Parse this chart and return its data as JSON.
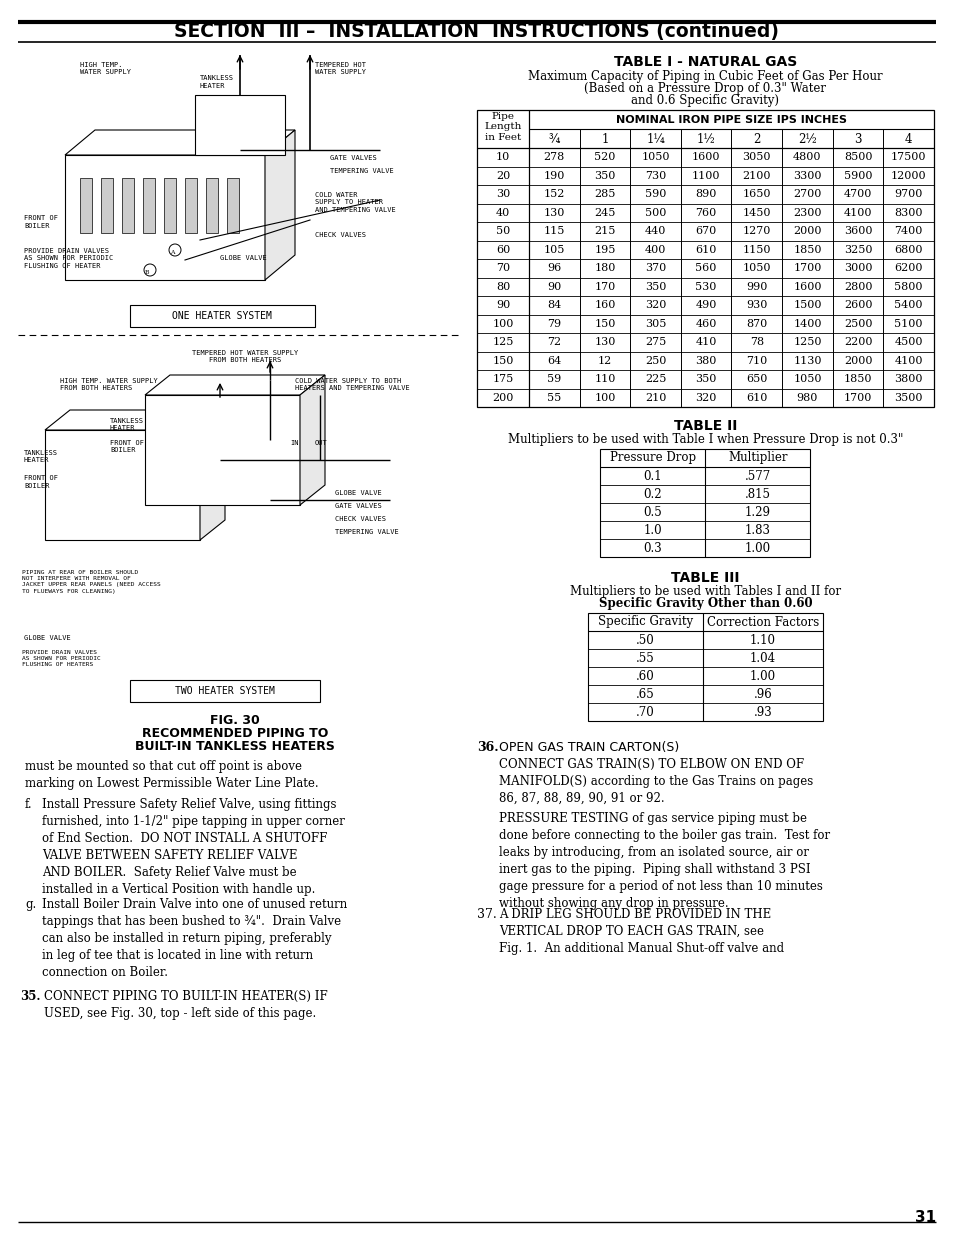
{
  "title": "SECTION  III –  INSTALLATION  INSTRUCTIONS (continued)",
  "page_number": "31",
  "table1_title": "TABLE I - NATURAL GAS",
  "table1_subtitle1": "Maximum Capacity of Piping in Cubic Feet of Gas Per Hour",
  "table1_subtitle2": "(Based on a Pressure Drop of 0.3\" Water",
  "table1_subtitle3": "and 0.6 Specific Gravity)",
  "table1_pipe_sizes": [
    "¾",
    "1",
    "1¼",
    "1½",
    "2",
    "2½",
    "3",
    "4"
  ],
  "table1_data": [
    [
      "10",
      "278",
      "520",
      "1050",
      "1600",
      "3050",
      "4800",
      "8500",
      "17500"
    ],
    [
      "20",
      "190",
      "350",
      "730",
      "1100",
      "2100",
      "3300",
      "5900",
      "12000"
    ],
    [
      "30",
      "152",
      "285",
      "590",
      "890",
      "1650",
      "2700",
      "4700",
      "9700"
    ],
    [
      "40",
      "130",
      "245",
      "500",
      "760",
      "1450",
      "2300",
      "4100",
      "8300"
    ],
    [
      "50",
      "115",
      "215",
      "440",
      "670",
      "1270",
      "2000",
      "3600",
      "7400"
    ],
    [
      "60",
      "105",
      "195",
      "400",
      "610",
      "1150",
      "1850",
      "3250",
      "6800"
    ],
    [
      "70",
      "96",
      "180",
      "370",
      "560",
      "1050",
      "1700",
      "3000",
      "6200"
    ],
    [
      "80",
      "90",
      "170",
      "350",
      "530",
      "990",
      "1600",
      "2800",
      "5800"
    ],
    [
      "90",
      "84",
      "160",
      "320",
      "490",
      "930",
      "1500",
      "2600",
      "5400"
    ],
    [
      "100",
      "79",
      "150",
      "305",
      "460",
      "870",
      "1400",
      "2500",
      "5100"
    ],
    [
      "125",
      "72",
      "130",
      "275",
      "410",
      "78",
      "1250",
      "2200",
      "4500"
    ],
    [
      "150",
      "64",
      "12",
      "250",
      "380",
      "710",
      "1130",
      "2000",
      "4100"
    ],
    [
      "175",
      "59",
      "110",
      "225",
      "350",
      "650",
      "1050",
      "1850",
      "3800"
    ],
    [
      "200",
      "55",
      "100",
      "210",
      "320",
      "610",
      "980",
      "1700",
      "3500"
    ]
  ],
  "table2_title": "TABLE II",
  "table2_subtitle": "Multipliers to be used with Table I when Pressure Drop is not 0.3\"",
  "table2_headers": [
    "Pressure Drop",
    "Multiplier"
  ],
  "table2_data": [
    [
      "0.1",
      ".577"
    ],
    [
      "0.2",
      ".815"
    ],
    [
      "0.5",
      "1.29"
    ],
    [
      "1.0",
      "1.83"
    ],
    [
      "0.3",
      "1.00"
    ]
  ],
  "table3_title": "TABLE III",
  "table3_subtitle1": "Multipliers to be used with Tables I and II for",
  "table3_subtitle2": "Specific Gravity Other than 0.60",
  "table3_headers": [
    "Specific Gravity",
    "Correction Factors"
  ],
  "table3_data": [
    [
      ".50",
      "1.10"
    ],
    [
      ".55",
      "1.04"
    ],
    [
      ".60",
      "1.00"
    ],
    [
      ".65",
      ".96"
    ],
    [
      ".70",
      ".93"
    ]
  ],
  "fig_caption1": "FIG. 30",
  "fig_caption2": "RECOMMENDED PIPING TO",
  "fig_caption3": "BUILT-IN TANKLESS HEATERS",
  "text_f_label": "f.",
  "text_f_body": "Install Pressure Safety Relief Valve, using fittings\nfurnished, into 1-1/2\" pipe tapping in upper corner\nof End Section.  DO NOT INSTALL A SHUTOFF\nVALVE BETWEEN SAFETY RELIEF VALVE\nAND BOILER.  Safety Relief Valve must be\ninstalled in a Vertical Position with handle up.",
  "text_continuation": "must be mounted so that cut off point is above\nmarking on Lowest Permissible Water Line Plate.",
  "text_g_label": "g.",
  "text_g_body": "Install Boiler Drain Valve into one of unused return\ntappings that has been bushed to ¾\".  Drain Valve\ncan also be installed in return piping, preferably\nin leg of tee that is located in line with return\nconnection on Boiler.",
  "item35_label": "35.",
  "item35_text": "CONNECT PIPING TO BUILT-IN HEATER(S) IF\nUSED, see Fig. 30, top - left side of this page.",
  "item36_label": "36.",
  "item36_title": "OPEN GAS TRAIN CARTON(S)",
  "item36_text1": "CONNECT GAS TRAIN(S) TO ELBOW ON END OF\nMANIFOLD(S) according to the Gas Trains on pages\n86, 87, 88, 89, 90, 91 or 92.",
  "item36_text2": "PRESSURE TESTING of gas service piping must be\ndone before connecting to the boiler gas train.  Test for\nleaks by introducing, from an isolated source, air or\ninert gas to the piping.  Piping shall withstand 3 PSI\ngage pressure for a period of not less than 10 minutes\nwithout showing any drop in pressure.",
  "item37_label": "37.",
  "item37_text": "A DRIP LEG SHOULD BE PROVIDED IN THE\nVERTICAL DROP TO EACH GAS TRAIN, see\nFig. 1.  An additional Manual Shut-off valve and",
  "bg_color": "#ffffff"
}
